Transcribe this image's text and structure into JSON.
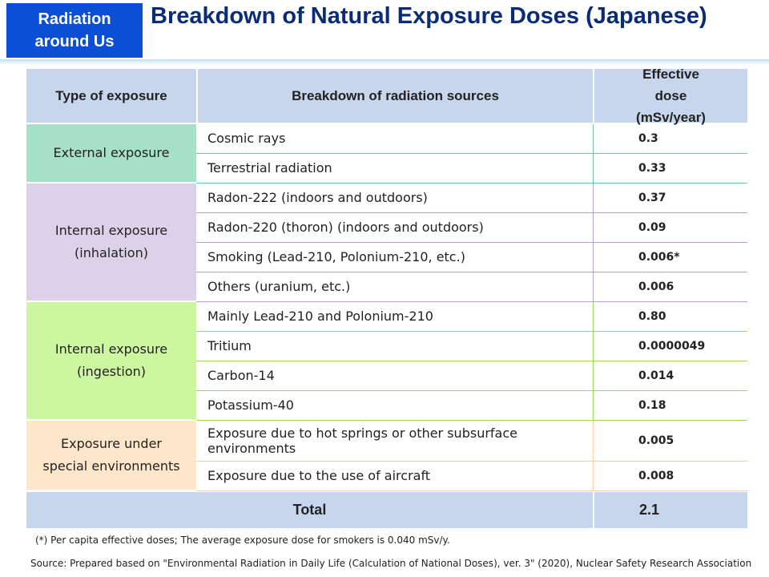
{
  "header": {
    "badge": "Radiation around Us",
    "title": "Breakdown of Natural Exposure Doses (Japanese)"
  },
  "table": {
    "columns": [
      "Type of exposure",
      "Breakdown of radiation sources",
      "Effective dose (mSv/year)"
    ],
    "groups": [
      {
        "type": "External exposure",
        "rows": [
          {
            "source": "Cosmic rays",
            "dose": "0.3"
          },
          {
            "source": "Terrestrial radiation",
            "dose": "0.33"
          }
        ]
      },
      {
        "type": "Internal exposure (inhalation)",
        "rows": [
          {
            "source": "Radon-222 (indoors and outdoors)",
            "dose": "0.37"
          },
          {
            "source": "Radon-220 (thoron) (indoors and outdoors)",
            "dose": "0.09"
          },
          {
            "source": "Smoking (Lead-210, Polonium-210, etc.)",
            "dose": "0.006*"
          },
          {
            "source": "Others (uranium, etc.)",
            "dose": "0.006"
          }
        ]
      },
      {
        "type": "Internal exposure (ingestion)",
        "rows": [
          {
            "source": "Mainly Lead-210 and Polonium-210",
            "dose": "0.80"
          },
          {
            "source": "Tritium",
            "dose": "0.0000049"
          },
          {
            "source": "Carbon-14",
            "dose": "0.014"
          },
          {
            "source": "Potassium-40",
            "dose": "0.18"
          }
        ]
      },
      {
        "type": "Exposure under special environments",
        "rows": [
          {
            "source": "Exposure due to hot springs or other subsurface environments",
            "dose": "0.005"
          },
          {
            "source": "Exposure due to the use of aircraft",
            "dose": "0.008"
          }
        ]
      }
    ],
    "total": {
      "label": "Total",
      "dose": "2.1"
    }
  },
  "footnote": "(*) Per capita effective doses; The average exposure dose for smokers is 0.040 mSv/y.",
  "source": "Source: Prepared based on \"Environmental Radiation in Daily Life (Calculation of National Doses), ver. 3\" (2020), Nuclear Safety Research Association"
}
